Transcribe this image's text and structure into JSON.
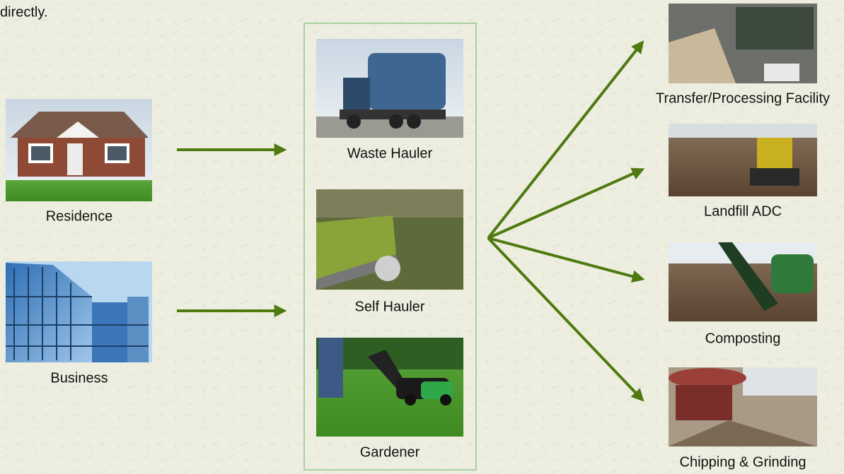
{
  "intro_text": "directly.",
  "sources": [
    {
      "label": "Residence"
    },
    {
      "label": "Business"
    }
  ],
  "haulers": [
    {
      "label": "Waste Hauler"
    },
    {
      "label": "Self Hauler"
    },
    {
      "label": "Gardener"
    }
  ],
  "destinations": [
    {
      "label": "Transfer/Processing Facility"
    },
    {
      "label": "Landfill ADC"
    },
    {
      "label": "Composting"
    },
    {
      "label": "Chipping & Grinding"
    }
  ]
}
